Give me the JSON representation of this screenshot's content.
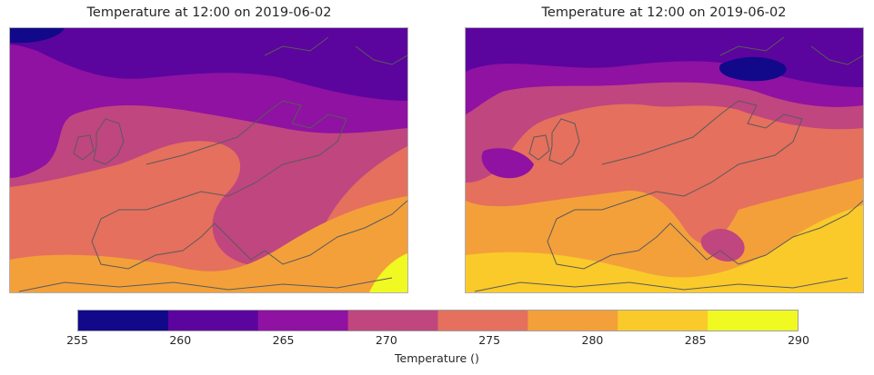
{
  "panels": [
    {
      "title": "Temperature at 12:00 on 2019-06-02"
    },
    {
      "title": "Temperature at 12:00 on 2019-06-02"
    }
  ],
  "colorbar": {
    "label": "Temperature ()",
    "ticks": [
      "255",
      "260",
      "265",
      "270",
      "275",
      "280",
      "285",
      "290"
    ],
    "levels": [
      255,
      260,
      265,
      270,
      275,
      280,
      285,
      290
    ],
    "colors": [
      "#11098a",
      "#5c049e",
      "#8f12a2",
      "#c0467f",
      "#e5705d",
      "#f3a03a",
      "#faca2a",
      "#f0f921"
    ]
  }
}
